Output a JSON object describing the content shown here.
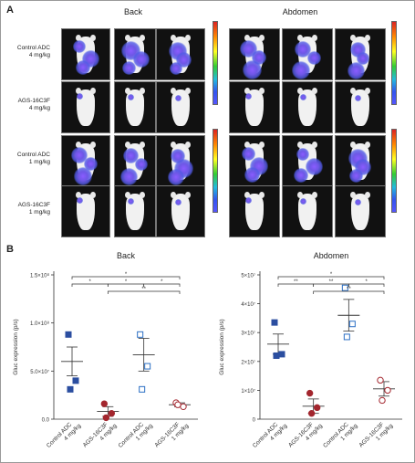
{
  "panel_a": {
    "letter": "A",
    "column_titles": [
      "Back",
      "Abdomen"
    ],
    "row_labels": [
      {
        "line1": "Control ADC",
        "line2": "4 mg/kg"
      },
      {
        "line1": "AGS-16C3F",
        "line2": "4 mg/kg"
      },
      {
        "line1": "Control ADC",
        "line2": "1 mg/kg"
      },
      {
        "line1": "AGS-16C3F",
        "line2": "1 mg/kg"
      }
    ]
  },
  "panel_b": {
    "letter": "B"
  },
  "chart_data": [
    {
      "type": "scatter",
      "title": "Back",
      "ylabel": "Gluc expression (p/s)",
      "ylim": [
        0,
        150000000
      ],
      "yticks": [
        {
          "v": 0,
          "label": "0.0"
        },
        {
          "v": 50000000,
          "label": "5.0×10⁷"
        },
        {
          "v": 100000000,
          "label": "1.0×10⁸"
        },
        {
          "v": 150000000,
          "label": "1.5×10⁸"
        }
      ],
      "categories": [
        "Control ADC\n4 mg/kg",
        "AGS-16C3F\n4 mg/kg",
        "Control ADC\n1 mg/kg",
        "AGS-16C3F\n1 mg/kg"
      ],
      "groups": [
        {
          "points": [
            88000000,
            40000000,
            31000000
          ],
          "mean": 60000000,
          "sem_low": 45000000,
          "sem_high": 75000000,
          "marker": "square",
          "filled": true,
          "color": "#2b4ea0"
        },
        {
          "points": [
            16000000,
            6000000,
            1500000
          ],
          "mean": 8000000,
          "sem_low": 3000000,
          "sem_high": 13000000,
          "marker": "circle",
          "filled": true,
          "color": "#a3262e"
        },
        {
          "points": [
            88000000,
            55000000,
            31000000
          ],
          "mean": 67000000,
          "sem_low": 50000000,
          "sem_high": 84000000,
          "marker": "square",
          "filled": false,
          "color": "#2b6fc4"
        },
        {
          "points": [
            17000000,
            13000000,
            15000000
          ],
          "mean": 15000000,
          "sem_low": 13000000,
          "sem_high": 17000000,
          "marker": "circle",
          "filled": false,
          "color": "#a3262e"
        }
      ],
      "brackets": [
        {
          "from": 0,
          "to": 3,
          "label": "*",
          "level": 3
        },
        {
          "from": 0,
          "to": 1,
          "label": "*",
          "level": 1
        },
        {
          "from": 1,
          "to": 2,
          "label": "*",
          "level": 1
        },
        {
          "from": 2,
          "to": 3,
          "label": "*",
          "level": 1
        },
        {
          "from": 1,
          "to": 3,
          "label": "**",
          "level": 2
        }
      ]
    },
    {
      "type": "scatter",
      "title": "Abdomen",
      "ylabel": "Gluc expression (p/s)",
      "ylim": [
        0,
        50000000
      ],
      "yticks": [
        {
          "v": 0,
          "label": "0"
        },
        {
          "v": 10000000,
          "label": "1×10⁷"
        },
        {
          "v": 20000000,
          "label": "2×10⁷"
        },
        {
          "v": 30000000,
          "label": "3×10⁷"
        },
        {
          "v": 40000000,
          "label": "4×10⁷"
        },
        {
          "v": 50000000,
          "label": "5×10⁷"
        }
      ],
      "categories": [
        "Control ADC\n4 mg/kg",
        "AGS-16C3F\n4 mg/kg",
        "Control ADC\n1 mg/kg",
        "AGS-16C3F\n1 mg/kg"
      ],
      "groups": [
        {
          "points": [
            33500000,
            22500000,
            22000000
          ],
          "mean": 26000000,
          "sem_low": 22500000,
          "sem_high": 29500000,
          "marker": "square",
          "filled": true,
          "color": "#2b4ea0"
        },
        {
          "points": [
            9000000,
            4000000,
            2000000
          ],
          "mean": 4500000,
          "sem_low": 2000000,
          "sem_high": 7000000,
          "marker": "circle",
          "filled": true,
          "color": "#a3262e"
        },
        {
          "points": [
            45500000,
            33000000,
            28500000
          ],
          "mean": 36000000,
          "sem_low": 30500000,
          "sem_high": 41500000,
          "marker": "square",
          "filled": false,
          "color": "#2b6fc4"
        },
        {
          "points": [
            13500000,
            10000000,
            6500000
          ],
          "mean": 10500000,
          "sem_low": 8000000,
          "sem_high": 13000000,
          "marker": "circle",
          "filled": false,
          "color": "#a3262e"
        }
      ],
      "brackets": [
        {
          "from": 0,
          "to": 3,
          "label": "*",
          "level": 3
        },
        {
          "from": 0,
          "to": 1,
          "label": "**",
          "level": 1
        },
        {
          "from": 1,
          "to": 2,
          "label": "**",
          "level": 1
        },
        {
          "from": 2,
          "to": 3,
          "label": "*",
          "level": 1
        },
        {
          "from": 1,
          "to": 3,
          "label": "**",
          "level": 2
        }
      ]
    }
  ]
}
